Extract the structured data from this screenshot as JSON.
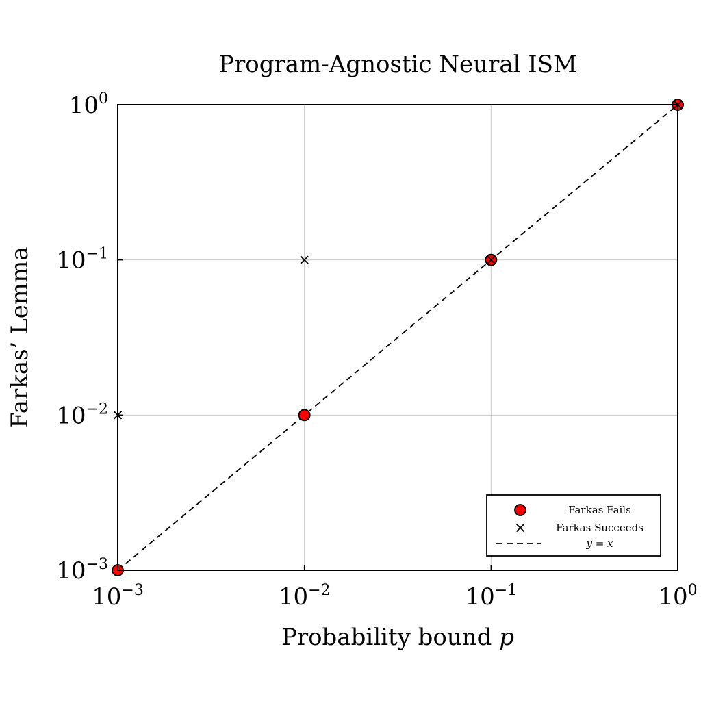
{
  "chart_data": {
    "type": "scatter",
    "title": "Program-Agnostic Neural ISM",
    "xlabel": "Probability bound p",
    "ylabel": "Farkas’ Lemma",
    "xscale": "log",
    "yscale": "log",
    "xlim": [
      0.001,
      1
    ],
    "ylim": [
      0.001,
      1
    ],
    "grid": true,
    "legend_position": "bottom-right",
    "x_ticks": [
      {
        "value": 0.001,
        "base": "10",
        "exp": "−3"
      },
      {
        "value": 0.01,
        "base": "10",
        "exp": "−2"
      },
      {
        "value": 0.1,
        "base": "10",
        "exp": "−1"
      },
      {
        "value": 1,
        "base": "10",
        "exp": "0"
      }
    ],
    "y_ticks": [
      {
        "value": 0.001,
        "base": "10",
        "exp": "−3"
      },
      {
        "value": 0.01,
        "base": "10",
        "exp": "−2"
      },
      {
        "value": 0.1,
        "base": "10",
        "exp": "−1"
      },
      {
        "value": 1,
        "base": "10",
        "exp": "0"
      }
    ],
    "series": [
      {
        "name": "Farkas Fails",
        "marker": "circle",
        "color": "#ff0000",
        "points": [
          {
            "x": 0.001,
            "y": 0.001
          },
          {
            "x": 0.01,
            "y": 0.01
          },
          {
            "x": 0.1,
            "y": 0.1
          },
          {
            "x": 1,
            "y": 1
          }
        ]
      },
      {
        "name": "Farkas Succeeds",
        "marker": "x",
        "color": "#000000",
        "points": [
          {
            "x": 0.001,
            "y": 0.01
          },
          {
            "x": 0.01,
            "y": 0.1
          },
          {
            "x": 0.1,
            "y": 0.1
          },
          {
            "x": 1,
            "y": 1
          }
        ]
      },
      {
        "name": "y = x",
        "marker": "dashed-line",
        "color": "#000000",
        "points": [
          {
            "x": 0.001,
            "y": 0.001
          },
          {
            "x": 1,
            "y": 1
          }
        ]
      }
    ]
  }
}
